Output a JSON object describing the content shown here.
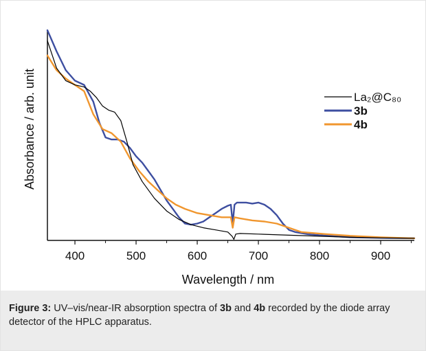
{
  "figure": {
    "caption_title": "Figure 3:",
    "caption_parts": [
      {
        "text": " UV–vis/near-IR absorption spectra of ",
        "bold": false
      },
      {
        "text": "3b",
        "bold": true
      },
      {
        "text": " and ",
        "bold": false
      },
      {
        "text": "4b",
        "bold": true
      },
      {
        "text": " recorded by the diode array detector of the HPLC apparatus.",
        "bold": false
      }
    ]
  },
  "chart_data": {
    "type": "line",
    "title": "",
    "xlabel": "Wavelength / nm",
    "ylabel": "Absorbance / arb. unit",
    "xlim": [
      355,
      955
    ],
    "ylim": [
      0,
      1.0
    ],
    "x_ticks": [
      400,
      500,
      600,
      700,
      800,
      900
    ],
    "y_ticks_shown": false,
    "grid": false,
    "legend_position": "top-right",
    "series": [
      {
        "name": "La₂@C₈₀",
        "color": "#000000",
        "bold": false,
        "x": [
          355,
          370,
          385,
          400,
          415,
          425,
          435,
          445,
          455,
          465,
          475,
          485,
          495,
          510,
          530,
          550,
          570,
          590,
          610,
          630,
          650,
          657,
          660,
          663,
          670,
          700,
          750,
          800,
          850,
          900,
          955
        ],
        "y": [
          0.95,
          0.82,
          0.76,
          0.74,
          0.73,
          0.71,
          0.68,
          0.64,
          0.62,
          0.61,
          0.57,
          0.47,
          0.36,
          0.28,
          0.2,
          0.14,
          0.1,
          0.075,
          0.06,
          0.05,
          0.04,
          0.02,
          0.005,
          0.03,
          0.033,
          0.03,
          0.025,
          0.02,
          0.015,
          0.012,
          0.01
        ]
      },
      {
        "name": "3b",
        "color": "#3d4ea0",
        "bold": true,
        "x": [
          355,
          370,
          385,
          400,
          415,
          430,
          440,
          450,
          460,
          470,
          480,
          490,
          500,
          510,
          520,
          530,
          540,
          550,
          560,
          570,
          580,
          590,
          600,
          610,
          620,
          630,
          640,
          650,
          655,
          658,
          661,
          665,
          670,
          680,
          690,
          700,
          710,
          720,
          730,
          740,
          750,
          760,
          780,
          800,
          850,
          900,
          955
        ],
        "y": [
          1.0,
          0.9,
          0.81,
          0.76,
          0.74,
          0.66,
          0.56,
          0.49,
          0.48,
          0.48,
          0.47,
          0.44,
          0.4,
          0.37,
          0.33,
          0.29,
          0.24,
          0.19,
          0.15,
          0.11,
          0.08,
          0.075,
          0.08,
          0.09,
          0.11,
          0.13,
          0.15,
          0.165,
          0.17,
          0.08,
          0.17,
          0.18,
          0.18,
          0.18,
          0.175,
          0.18,
          0.17,
          0.15,
          0.12,
          0.08,
          0.05,
          0.04,
          0.03,
          0.025,
          0.015,
          0.012,
          0.01
        ]
      },
      {
        "name": "4b",
        "color": "#f0962e",
        "bold": true,
        "x": [
          355,
          370,
          385,
          400,
          415,
          430,
          445,
          460,
          475,
          490,
          505,
          520,
          535,
          550,
          565,
          580,
          600,
          620,
          640,
          655,
          658,
          661,
          670,
          690,
          710,
          730,
          750,
          770,
          790,
          810,
          850,
          900,
          955
        ],
        "y": [
          0.88,
          0.81,
          0.77,
          0.74,
          0.71,
          0.6,
          0.53,
          0.51,
          0.47,
          0.39,
          0.33,
          0.28,
          0.24,
          0.2,
          0.17,
          0.15,
          0.13,
          0.12,
          0.11,
          0.11,
          0.06,
          0.11,
          0.105,
          0.095,
          0.09,
          0.08,
          0.06,
          0.04,
          0.035,
          0.03,
          0.022,
          0.015,
          0.01
        ]
      }
    ]
  }
}
